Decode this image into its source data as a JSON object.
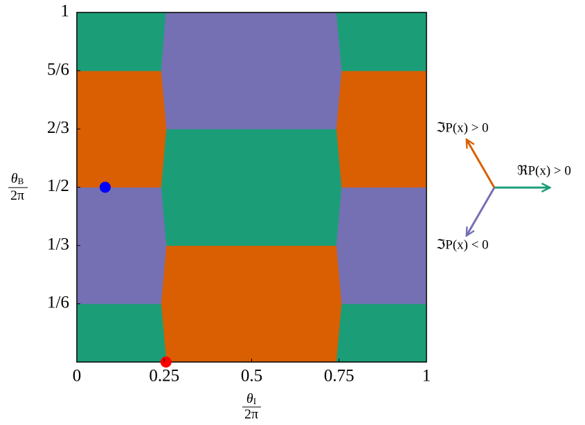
{
  "chart_data": {
    "type": "phase-diagram",
    "xlabel": {
      "numerator": "θ",
      "subscript": "I",
      "denominator": "2π"
    },
    "ylabel": {
      "numerator": "θ",
      "subscript": "B",
      "denominator": "2π"
    },
    "xlim": [
      0,
      1
    ],
    "ylim": [
      0,
      1
    ],
    "xticks": [
      0,
      0.25,
      0.5,
      0.75,
      1
    ],
    "yticks": [
      {
        "value": 0.1667,
        "label": "1/6"
      },
      {
        "value": 0.3333,
        "label": "1/3"
      },
      {
        "value": 0.5,
        "label": "1/2"
      },
      {
        "value": 0.6667,
        "label": "2/3"
      },
      {
        "value": 0.8333,
        "label": "5/6"
      },
      1
    ],
    "boundaries": {
      "y": [
        0,
        0.1667,
        0.3333,
        0.5,
        0.6667,
        0.8333,
        1
      ],
      "left_x": [
        0.257,
        0.242,
        0.257,
        0.242,
        0.257,
        0.242,
        0.255
      ],
      "right_x": [
        0.743,
        0.758,
        0.743,
        0.758,
        0.743,
        0.758,
        0.743
      ]
    },
    "band_colors": [
      [
        "#1b9e77",
        "#d95f02",
        "#1b9e77"
      ],
      [
        "#7570b3",
        "#d95f02",
        "#7570b3"
      ],
      [
        "#7570b3",
        "#1b9e77",
        "#7570b3"
      ],
      [
        "#d95f02",
        "#1b9e77",
        "#d95f02"
      ],
      [
        "#d95f02",
        "#7570b3",
        "#d95f02"
      ],
      [
        "#1b9e77",
        "#7570b3",
        "#1b9e77"
      ]
    ],
    "points": [
      {
        "x": 0.081,
        "y": 0.5,
        "color": "#0000ff"
      },
      {
        "x": 0.255,
        "y": 0,
        "color": "#ff0000"
      }
    ],
    "legend": [
      {
        "label": "ℜP(x) > 0",
        "color": "#1b9e77"
      },
      {
        "label": "ℑP(x) > 0",
        "color": "#d95f02"
      },
      {
        "label": "ℑP(x) < 0",
        "color": "#7570b3"
      }
    ]
  }
}
